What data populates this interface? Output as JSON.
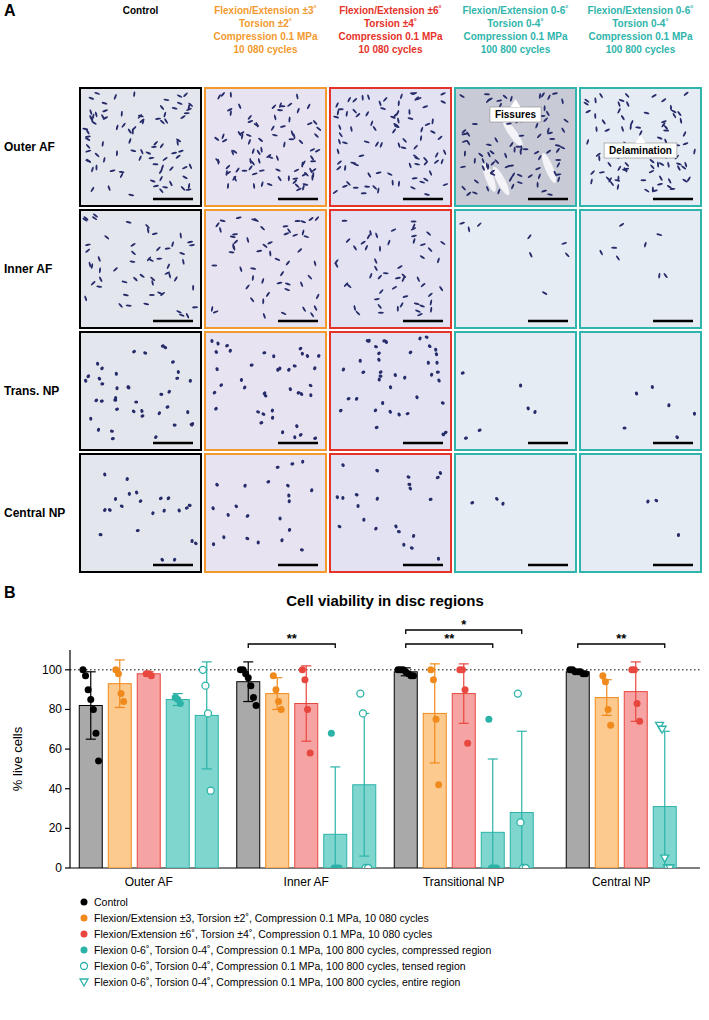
{
  "panel_a": {
    "letter": "A",
    "columns": [
      {
        "lines": [
          "Control"
        ],
        "color": "#000000"
      },
      {
        "lines": [
          "Flexion/Extension ±3˚",
          "Torsion ±2˚",
          "Compression 0.1 MPa",
          "10 080 cycles"
        ],
        "color": "#f29a2e"
      },
      {
        "lines": [
          "Flexion/Extension ±6˚",
          "Torsion ±4˚",
          "Compression 0.1 MPa",
          "10 080 cycles"
        ],
        "color": "#e5332a"
      },
      {
        "lines": [
          "Flexion/Extension 0-6˚",
          "Torsion 0-4˚",
          "Compression 0.1 MPa",
          "100 800 cycles"
        ],
        "color": "#2fb5ab",
        "outer_af_annotation": "Fissures"
      },
      {
        "lines": [
          "Flexion/Extension 0-6˚",
          "Torsion 0-4˚",
          "Compression 0.1 MPa",
          "100 800 cycles"
        ],
        "color": "#2fb5ab",
        "outer_af_annotation": "Delamination"
      }
    ],
    "rows": [
      "Outer AF",
      "Inner AF",
      "Trans. NP",
      "Central NP"
    ]
  },
  "chart_data": {
    "type": "bar",
    "letter": "B",
    "title": "Cell viability in disc regions",
    "y_label": "% live cells",
    "categories": [
      "Outer AF",
      "Inner AF",
      "Transitional NP",
      "Central NP"
    ],
    "ylim": [
      0,
      110
    ],
    "yticks": [
      0,
      20,
      40,
      60,
      80,
      100
    ],
    "reference_line": 100,
    "grid": false,
    "legend": "bottom",
    "series": [
      {
        "name": "Control",
        "color": "#a9a9a9",
        "marker": "circle",
        "values": [
          82,
          94,
          99,
          99
        ],
        "errors": [
          17,
          10,
          2,
          1
        ],
        "points": [
          [
            100,
            97,
            90,
            85,
            80,
            68,
            54
          ],
          [
            100,
            100,
            98,
            96,
            92,
            86,
            82
          ],
          [
            100,
            100,
            100,
            99,
            98,
            97,
            97
          ],
          [
            100,
            100,
            99,
            99,
            99,
            98,
            98
          ]
        ]
      },
      {
        "name": "Flexion/Extension ±3, Torsion ±2˚, Compression 0.1 MPa, 10 080 cycles",
        "color": "#fcc98e",
        "marker": "circle",
        "values": [
          93,
          88,
          78,
          86
        ],
        "errors": [
          12,
          8,
          25,
          9
        ],
        "points": [
          [
            100,
            98,
            88,
            84
          ],
          [
            97,
            90,
            84,
            80
          ],
          [
            100,
            95,
            75,
            42
          ],
          [
            97,
            94,
            80,
            72
          ]
        ]
      },
      {
        "name": "Flexion/Extension ±6˚, Torsion ±4˚, Compression 0.1 MPa, 10 080 cycles",
        "color": "#f6a3a3",
        "marker": "circle",
        "values": [
          98,
          83,
          88,
          89
        ],
        "errors": [
          1,
          19,
          15,
          15
        ],
        "points": [
          [
            98,
            98,
            97
          ],
          [
            100,
            95,
            80,
            58
          ],
          [
            100,
            100,
            90,
            63
          ],
          [
            100,
            100,
            83,
            74
          ]
        ]
      },
      {
        "name": "Flexion 0-6˚, Torsion 0-4˚, Compression 0.1 MPa, 100 800 cycles, compressed region",
        "color": "#7fd6ce",
        "marker": "circle",
        "values": [
          85,
          17,
          18,
          null
        ],
        "errors": [
          3,
          34,
          37,
          null
        ],
        "points": [
          [
            86,
            85,
            83
          ],
          [
            68,
            0,
            0,
            0
          ],
          [
            75,
            0,
            0,
            0
          ],
          null
        ]
      },
      {
        "name": "Flexion 0-6˚, Torsion 0-4˚, Compression 0.1 MPa, 100 800 cycles, tensed region",
        "color": "#7fd6ce",
        "marker": "open-circle",
        "values": [
          77,
          42,
          28,
          null
        ],
        "errors": [
          27,
          36,
          41,
          null
        ],
        "points": [
          [
            100,
            92,
            78,
            39
          ],
          [
            88,
            78,
            0,
            0
          ],
          [
            88,
            23,
            0,
            0
          ],
          null
        ]
      },
      {
        "name": "Flexion 0-6˚, Torsion 0-4˚, Compression 0.1 MPa, 100 800 cycles, entire region",
        "color": "#7fd6ce",
        "marker": "open-triangle-down",
        "values": [
          null,
          null,
          null,
          31
        ],
        "errors": [
          null,
          null,
          null,
          38
        ],
        "points": [
          null,
          null,
          null,
          [
            72,
            70,
            5,
            0,
            0
          ]
        ]
      }
    ],
    "significance": [
      {
        "category": 1,
        "series": [
          0,
          3
        ],
        "label": "**"
      },
      {
        "category": 2,
        "series": [
          0,
          3
        ],
        "label": "**"
      },
      {
        "category": 2,
        "series": [
          0,
          4
        ],
        "label": "*"
      },
      {
        "category": 3,
        "series": [
          0,
          5
        ],
        "label": "**"
      }
    ]
  }
}
